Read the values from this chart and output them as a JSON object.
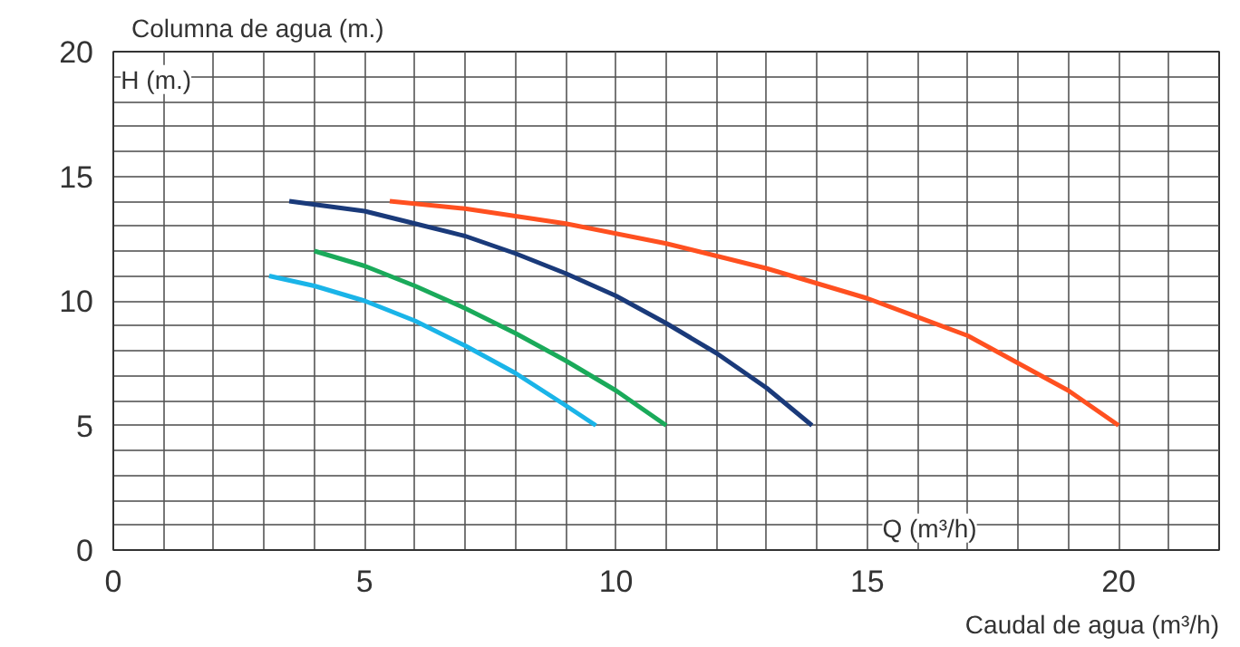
{
  "chart_data": {
    "type": "line",
    "xlabel": "Caudal de agua (m³/h)",
    "ylabel": "Columna de agua (m.)",
    "annotations": [
      "H (m.)",
      "Q (m³/h)"
    ],
    "xlim": [
      0,
      22
    ],
    "ylim": [
      0,
      20
    ],
    "xticks": [
      0,
      {
        "value": 1,
        "label": null
      },
      {
        "value": 2,
        "label": null
      },
      {
        "value": 3,
        "label": null
      },
      {
        "value": 4,
        "label": null
      },
      5,
      {
        "value": 6,
        "label": null
      },
      {
        "value": 7,
        "label": null
      },
      {
        "value": 8,
        "label": null
      },
      {
        "value": 9,
        "label": null
      },
      10,
      {
        "value": 11,
        "label": null
      },
      {
        "value": 12,
        "label": null
      },
      {
        "value": 13,
        "label": null
      },
      {
        "value": 14,
        "label": null
      },
      15,
      {
        "value": 16,
        "label": null
      },
      {
        "value": 17,
        "label": null
      },
      {
        "value": 18,
        "label": null
      },
      {
        "value": 19,
        "label": null
      },
      20,
      {
        "value": 21,
        "label": null
      },
      {
        "value": 22,
        "label": null
      }
    ],
    "yticks": [
      0,
      {
        "value": 1,
        "label": null
      },
      {
        "value": 2,
        "label": null
      },
      {
        "value": 3,
        "label": null
      },
      {
        "value": 4,
        "label": null
      },
      5,
      {
        "value": 6,
        "label": null
      },
      {
        "value": 7,
        "label": null
      },
      {
        "value": 8,
        "label": null
      },
      {
        "value": 9,
        "label": null
      },
      10,
      {
        "value": 11,
        "label": null
      },
      {
        "value": 12,
        "label": null
      },
      {
        "value": 13,
        "label": null
      },
      {
        "value": 14,
        "label": null
      },
      15,
      {
        "value": 16,
        "label": null
      },
      {
        "value": 17,
        "label": null
      },
      {
        "value": 18,
        "label": null
      },
      {
        "value": 19,
        "label": null
      },
      20
    ],
    "grid": true,
    "series": [
      {
        "color": "#1ab4e8",
        "x": [
          3.1,
          4,
          5,
          6,
          7,
          8,
          9,
          9.6
        ],
        "values": [
          11.0,
          10.6,
          10.0,
          9.2,
          8.2,
          7.1,
          5.8,
          5.0
        ]
      },
      {
        "color": "#1aaa5a",
        "x": [
          4,
          5,
          6,
          7,
          8,
          9,
          10,
          11
        ],
        "values": [
          12.0,
          11.4,
          10.6,
          9.7,
          8.7,
          7.6,
          6.4,
          5.0
        ]
      },
      {
        "color": "#1a3a7a",
        "x": [
          3.5,
          5,
          6,
          7,
          8,
          9,
          10,
          11,
          12,
          13,
          13.9
        ],
        "values": [
          14.0,
          13.6,
          13.1,
          12.6,
          11.9,
          11.1,
          10.2,
          9.1,
          7.9,
          6.5,
          5.0
        ]
      },
      {
        "color": "#ff5020",
        "x": [
          5.5,
          7,
          9,
          11,
          13,
          15,
          17,
          19,
          20
        ],
        "values": [
          14.0,
          13.7,
          13.1,
          12.3,
          11.3,
          10.1,
          8.6,
          6.4,
          5.0
        ]
      }
    ]
  }
}
